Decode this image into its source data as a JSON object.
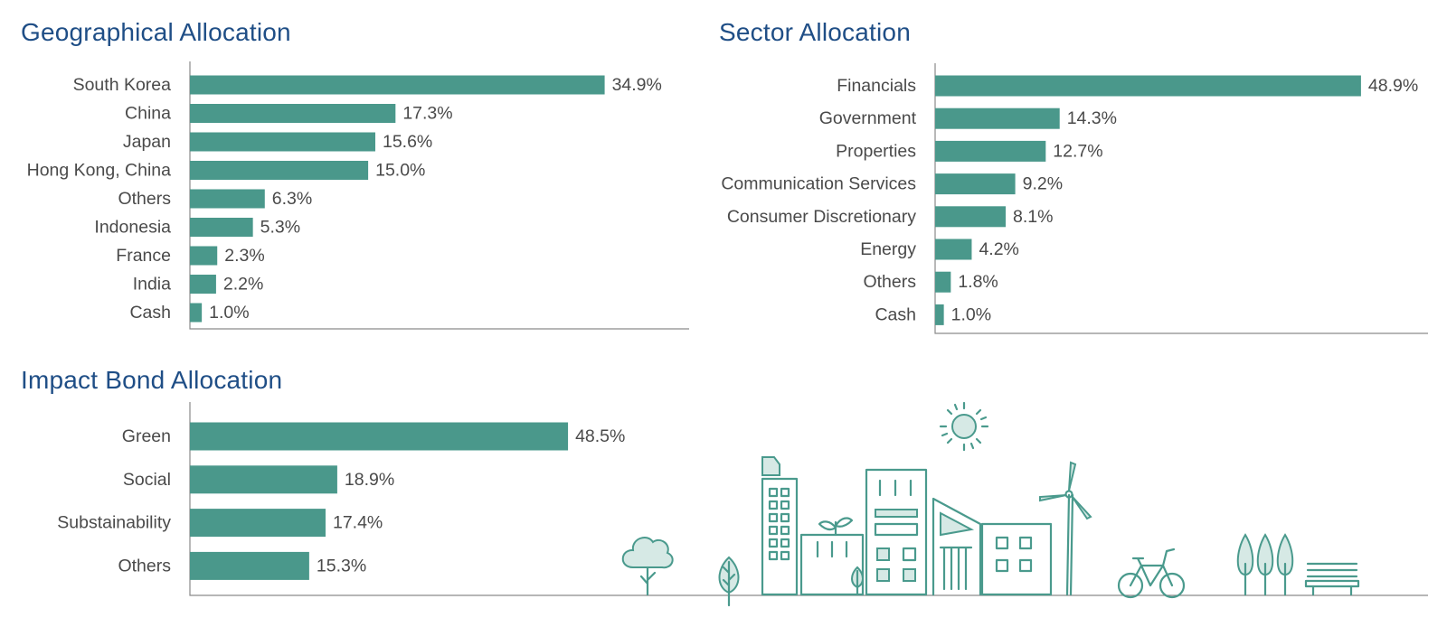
{
  "colors": {
    "bar": "#4a988b",
    "title": "#1f4e86",
    "text": "#4a4a4a",
    "axis": "#8a8a8a"
  },
  "chart_data": [
    {
      "id": "geographical",
      "type": "bar",
      "orientation": "horizontal",
      "title": "Geographical Allocation",
      "categories": [
        "South Korea",
        "China",
        "Japan",
        "Hong Kong, China",
        "Others",
        "Indonesia",
        "France",
        "India",
        "Cash"
      ],
      "values": [
        34.9,
        17.3,
        15.6,
        15.0,
        6.3,
        5.3,
        2.3,
        2.2,
        1.0
      ],
      "labels": [
        "34.9%",
        "17.3%",
        "15.6%",
        "15.0%",
        "6.3%",
        "5.3%",
        "2.3%",
        "2.2%",
        "1.0%"
      ],
      "unit": "%",
      "grid": false
    },
    {
      "id": "sector",
      "type": "bar",
      "orientation": "horizontal",
      "title": "Sector Allocation",
      "categories": [
        "Financials",
        "Government",
        "Properties",
        "Communication Services",
        "Consumer Discretionary",
        "Energy",
        "Others",
        "Cash"
      ],
      "values": [
        48.9,
        14.3,
        12.7,
        9.2,
        8.1,
        4.2,
        1.8,
        1.0
      ],
      "labels": [
        "48.9%",
        "14.3%",
        "12.7%",
        "9.2%",
        "8.1%",
        "4.2%",
        "1.8%",
        "1.0%"
      ],
      "unit": "%",
      "grid": false
    },
    {
      "id": "impact",
      "type": "bar",
      "orientation": "horizontal",
      "title": "Impact Bond Allocation",
      "categories": [
        "Green",
        "Social",
        "Substainability",
        "Others"
      ],
      "values": [
        48.5,
        18.9,
        17.4,
        15.3
      ],
      "labels": [
        "48.5%",
        "18.9%",
        "17.4%",
        "15.3%"
      ],
      "unit": "%",
      "grid": false
    }
  ],
  "illustration": {
    "icons": [
      "sun-icon",
      "tree-icon",
      "leaf-icon",
      "office-building-icon",
      "greenhouse-icon",
      "apartment-building-icon",
      "factory-icon",
      "house-icon",
      "wind-turbine-icon",
      "bicycle-icon",
      "pine-trees-icon",
      "bench-icon"
    ]
  }
}
